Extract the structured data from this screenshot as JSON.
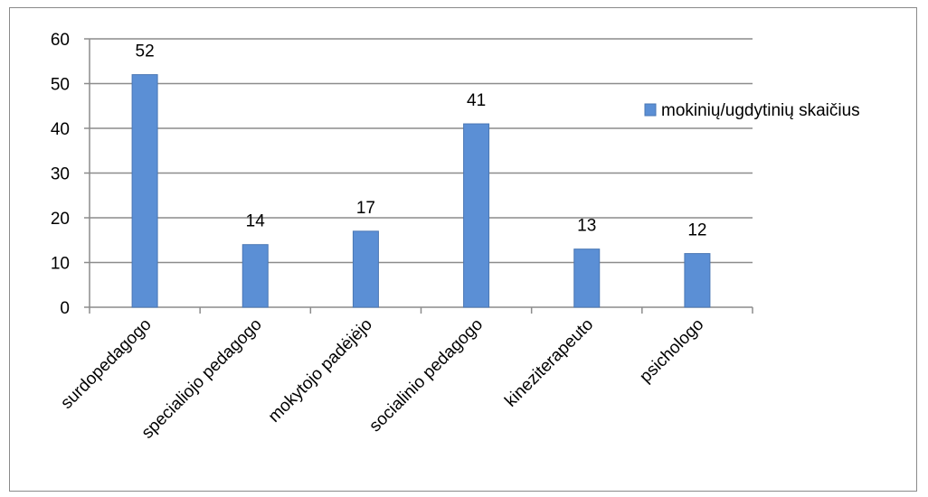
{
  "chart_data": {
    "type": "bar",
    "title": "",
    "xlabel": "",
    "ylabel": "",
    "categories": [
      "surdopedagogo",
      "specialiojo pedagogo",
      "mokytojo padėjėjo",
      "socialinio pedagogo",
      "kineziterapeuto",
      "psichologo"
    ],
    "series": [
      {
        "name": "mokinių/ugdytinių skaičius",
        "values": [
          52,
          14,
          17,
          41,
          13,
          12
        ],
        "color": "#5b8fd5"
      }
    ],
    "ylim": [
      0,
      60
    ],
    "yticks": [
      0,
      10,
      20,
      30,
      40,
      50,
      60
    ],
    "grid": true,
    "legend": "right"
  }
}
